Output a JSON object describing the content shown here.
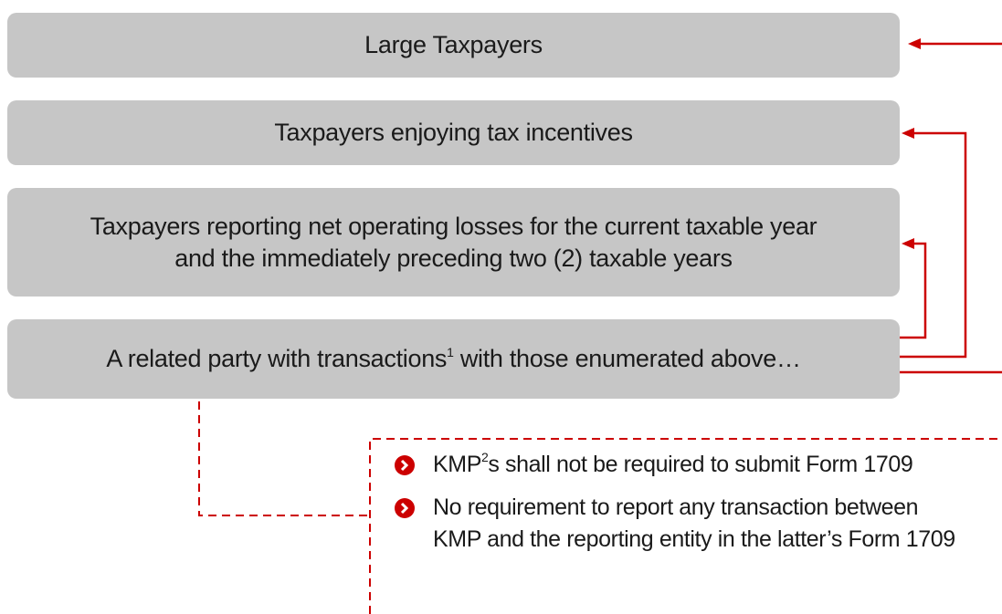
{
  "boxes": [
    {
      "label": "Large Taxpayers"
    },
    {
      "label": "Taxpayers enjoying tax incentives"
    },
    {
      "label": "Taxpayers reporting net operating losses for the current taxable year and the immediately preceding two (2) taxable years"
    },
    {
      "label_before": "A related party with transactions",
      "footnote": "1",
      "label_after": " with those enumerated above…"
    }
  ],
  "bullets": [
    {
      "text_before": "KMP",
      "footnote": "2",
      "text_after": "s shall not be required to submit Form 1709"
    },
    {
      "text": "No requirement to report any transaction between KMP and the reporting entity in the latter’s Form 1709"
    }
  ]
}
